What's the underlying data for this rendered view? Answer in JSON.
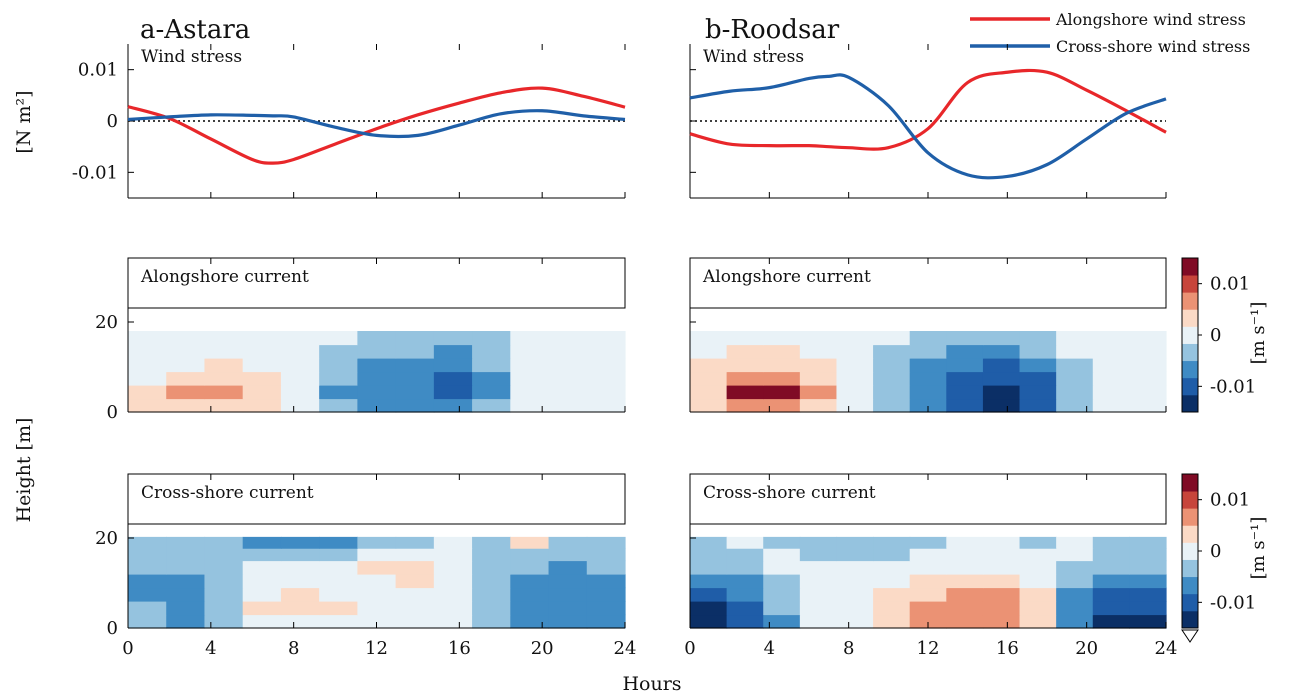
{
  "chart_data": [
    {
      "id": "a_wind",
      "type": "line",
      "title": "a-Astara",
      "inner_label": "Wind stress",
      "ylabel": "[N m²]",
      "xlim": [
        0,
        24
      ],
      "ylim": [
        -0.015,
        0.015
      ],
      "yticks": [
        0.01,
        0,
        -0.01
      ],
      "ytick_labels": [
        "0.01",
        "0",
        "-0.01"
      ],
      "x": [
        0,
        2,
        4,
        6,
        7,
        8,
        10,
        12,
        14,
        16,
        18,
        20,
        22,
        24
      ],
      "zero_line": "dotted",
      "series": [
        {
          "name": "Alongshore wind stress",
          "color": "#e8272a",
          "values": [
            0.0028,
            0.0005,
            -0.0035,
            -0.0075,
            -0.0082,
            -0.0075,
            -0.0045,
            -0.0015,
            0.0012,
            0.0035,
            0.0055,
            0.0064,
            0.0048,
            0.0027
          ]
        },
        {
          "name": "Cross-shore wind stress",
          "color": "#1f5fa8",
          "values": [
            0.0003,
            0.0008,
            0.0012,
            0.0011,
            0.001,
            0.0008,
            -0.0012,
            -0.0028,
            -0.0028,
            -0.0008,
            0.0014,
            0.002,
            0.001,
            0.0003
          ]
        }
      ]
    },
    {
      "id": "b_wind",
      "type": "line",
      "title": "b-Roodsar",
      "inner_label": "Wind stress",
      "xlim": [
        0,
        24
      ],
      "ylim": [
        -0.015,
        0.015
      ],
      "x": [
        0,
        2,
        4,
        6,
        7,
        8,
        10,
        12,
        14,
        16,
        18,
        20,
        22,
        24
      ],
      "zero_line": "dotted",
      "series": [
        {
          "name": "Alongshore wind stress",
          "color": "#e8272a",
          "values": [
            -0.0025,
            -0.0045,
            -0.0048,
            -0.0048,
            -0.005,
            -0.0052,
            -0.0052,
            -0.0015,
            0.0075,
            0.0095,
            0.0095,
            0.006,
            0.002,
            -0.0022
          ]
        },
        {
          "name": "Cross-shore wind stress",
          "color": "#1f5fa8",
          "values": [
            0.0045,
            0.0058,
            0.0065,
            0.0083,
            0.0087,
            0.0085,
            0.003,
            -0.0062,
            -0.0105,
            -0.0108,
            -0.0085,
            -0.0035,
            0.0015,
            0.0043
          ]
        }
      ]
    },
    {
      "id": "a_along",
      "type": "heatmap",
      "inner_label": "Alongshore current",
      "xlim": [
        0,
        24
      ],
      "ylim": [
        0,
        20
      ],
      "yticks": [
        0,
        20
      ],
      "ytick_labels": [
        "0",
        "20"
      ],
      "x": [
        0,
        2,
        4,
        6,
        8,
        10,
        12,
        14,
        16,
        18,
        20,
        22,
        24
      ],
      "z": [
        1.5,
        4.5,
        7.5,
        10.5,
        13.5,
        16.5
      ],
      "values": [
        [
          0.004,
          0.007,
          0.007,
          0.004,
          0.0,
          -0.003,
          -0.004,
          -0.005,
          -0.005,
          -0.003,
          0.0,
          0.002,
          0.001
        ],
        [
          0.004,
          0.008,
          0.008,
          0.005,
          0.0,
          -0.004,
          -0.005,
          -0.007,
          -0.009,
          -0.004,
          0.0,
          0.002,
          0.002
        ],
        [
          0.003,
          0.006,
          0.006,
          0.004,
          0.0,
          -0.003,
          -0.005,
          -0.006,
          -0.008,
          -0.004,
          0.0,
          0.002,
          0.001
        ],
        [
          0.002,
          0.003,
          0.004,
          0.002,
          0.0,
          -0.002,
          -0.004,
          -0.005,
          -0.006,
          -0.003,
          0.0,
          0.001,
          0.001
        ],
        [
          0.001,
          0.001,
          0.002,
          0.001,
          0.0,
          -0.001,
          -0.002,
          -0.003,
          -0.005,
          -0.002,
          0.0,
          0.0,
          0.0
        ],
        [
          0.0,
          0.0,
          0.0,
          0.0,
          0.0,
          0.0,
          -0.001,
          -0.001,
          -0.002,
          -0.001,
          0.0,
          0.0,
          0.0
        ]
      ]
    },
    {
      "id": "b_along",
      "type": "heatmap",
      "inner_label": "Alongshore current",
      "xlim": [
        0,
        24
      ],
      "ylim": [
        0,
        20
      ],
      "x": [
        0,
        2,
        4,
        6,
        8,
        10,
        12,
        14,
        16,
        18,
        20,
        22,
        24
      ],
      "z": [
        1.5,
        4.5,
        7.5,
        10.5,
        13.5,
        16.5
      ],
      "values": [
        [
          0.005,
          0.009,
          0.01,
          0.006,
          0.002,
          -0.002,
          -0.006,
          -0.009,
          -0.012,
          -0.008,
          -0.002,
          0.0,
          0.0
        ],
        [
          0.006,
          0.012,
          0.013,
          0.008,
          0.003,
          -0.003,
          -0.006,
          -0.01,
          -0.013,
          -0.01,
          -0.003,
          0.0,
          0.001
        ],
        [
          0.005,
          0.01,
          0.01,
          0.007,
          0.002,
          -0.003,
          -0.005,
          -0.009,
          -0.011,
          -0.008,
          -0.002,
          0.001,
          0.002
        ],
        [
          0.004,
          0.007,
          0.007,
          0.004,
          0.001,
          -0.002,
          -0.004,
          -0.007,
          -0.008,
          -0.005,
          -0.001,
          0.0,
          0.002
        ],
        [
          0.002,
          0.004,
          0.004,
          0.002,
          0.0,
          -0.001,
          -0.003,
          -0.004,
          -0.005,
          -0.003,
          0.0,
          0.0,
          0.001
        ],
        [
          0.001,
          0.002,
          0.002,
          0.001,
          0.0,
          0.0,
          -0.001,
          -0.002,
          -0.002,
          -0.001,
          0.0,
          0.0,
          0.0
        ]
      ]
    },
    {
      "id": "a_cross",
      "type": "heatmap",
      "inner_label": "Cross-shore current",
      "xlim": [
        0,
        24
      ],
      "ylim": [
        0,
        20
      ],
      "yticks": [
        0,
        20
      ],
      "ytick_labels": [
        "0",
        "20"
      ],
      "x": [
        0,
        2,
        4,
        6,
        8,
        10,
        12,
        14,
        16,
        18,
        20,
        22,
        24
      ],
      "z": [
        1.5,
        4.5,
        7.5,
        10.5,
        13.5,
        16.5,
        19
      ],
      "values": [
        [
          -0.002,
          -0.004,
          -0.001,
          0.002,
          0.002,
          0.002,
          0.002,
          0.001,
          0.0,
          -0.002,
          -0.004,
          -0.005,
          -0.004
        ],
        [
          -0.003,
          -0.006,
          -0.002,
          0.004,
          0.005,
          0.004,
          0.002,
          0.003,
          0.002,
          -0.002,
          -0.006,
          -0.007,
          -0.005
        ],
        [
          -0.005,
          -0.006,
          -0.002,
          0.003,
          0.004,
          0.002,
          0.002,
          0.003,
          0.002,
          -0.002,
          -0.005,
          -0.006,
          -0.005
        ],
        [
          -0.004,
          -0.005,
          -0.002,
          0.001,
          0.002,
          0.002,
          0.003,
          0.004,
          0.003,
          -0.001,
          -0.004,
          -0.005,
          -0.004
        ],
        [
          -0.002,
          -0.003,
          -0.001,
          0.0,
          0.001,
          0.003,
          0.004,
          0.004,
          0.002,
          -0.001,
          -0.003,
          -0.004,
          -0.003
        ],
        [
          -0.001,
          -0.002,
          -0.002,
          -0.001,
          -0.002,
          -0.001,
          0.001,
          0.002,
          0.001,
          -0.001,
          -0.002,
          -0.002,
          -0.002
        ],
        [
          -0.002,
          -0.003,
          -0.002,
          -0.004,
          -0.006,
          -0.004,
          -0.003,
          -0.002,
          0.0,
          -0.003,
          0.004,
          -0.002,
          -0.002
        ]
      ]
    },
    {
      "id": "b_cross",
      "type": "heatmap",
      "inner_label": "Cross-shore current",
      "xlim": [
        0,
        24
      ],
      "ylim": [
        0,
        20
      ],
      "x": [
        0,
        2,
        4,
        6,
        8,
        10,
        12,
        14,
        16,
        18,
        20,
        22,
        24
      ],
      "z": [
        1.5,
        4.5,
        7.5,
        10.5,
        13.5,
        16.5,
        19
      ],
      "values": [
        [
          -0.013,
          -0.011,
          -0.004,
          0.0,
          0.002,
          0.005,
          0.008,
          0.01,
          0.009,
          0.004,
          -0.006,
          -0.012,
          -0.013
        ],
        [
          -0.012,
          -0.009,
          -0.003,
          0.001,
          0.003,
          0.006,
          0.009,
          0.011,
          0.01,
          0.005,
          -0.005,
          -0.01,
          -0.011
        ],
        [
          -0.009,
          -0.007,
          -0.002,
          0.001,
          0.002,
          0.004,
          0.007,
          0.009,
          0.008,
          0.004,
          -0.004,
          -0.008,
          -0.008
        ],
        [
          -0.006,
          -0.004,
          -0.001,
          0.0,
          0.001,
          0.002,
          0.004,
          0.006,
          0.005,
          0.002,
          -0.002,
          -0.005,
          -0.005
        ],
        [
          -0.003,
          -0.002,
          0.0,
          0.0,
          0.0,
          0.001,
          0.002,
          0.003,
          0.003,
          0.001,
          -0.001,
          -0.003,
          -0.003
        ],
        [
          -0.001,
          -0.001,
          0.0,
          -0.001,
          -0.002,
          -0.001,
          0.0,
          0.001,
          0.001,
          0.0,
          0.0,
          -0.001,
          -0.001
        ],
        [
          -0.001,
          0.0,
          -0.001,
          -0.002,
          -0.003,
          -0.002,
          -0.001,
          0.0,
          0.0,
          -0.001,
          0.0,
          -0.001,
          -0.001
        ]
      ]
    }
  ],
  "x_axis": {
    "label": "Hours",
    "ticks": [
      0,
      4,
      8,
      12,
      16,
      20,
      24
    ],
    "tick_labels": [
      "0",
      "4",
      "8",
      "12",
      "16",
      "20",
      "24"
    ]
  },
  "shared_ylabel": "Height [m]",
  "legend": {
    "position": "top-right",
    "entries": [
      {
        "label": "Alongshore wind stress",
        "color": "#e8272a"
      },
      {
        "label": "Cross-shore wind stress",
        "color": "#1f5fa8"
      }
    ]
  },
  "colorbars": [
    {
      "for": "alongshore",
      "label": "[m s⁻¹]",
      "tick_values": [
        0.01,
        0,
        -0.01
      ],
      "tick_labels": [
        "0.01",
        "0",
        "-0.01"
      ],
      "range": [
        -0.015,
        0.015
      ]
    },
    {
      "for": "cross-shore",
      "label": "[m s⁻¹]",
      "tick_values": [
        0.01,
        0,
        -0.01
      ],
      "tick_labels": [
        "0.01",
        "0",
        "-0.01"
      ],
      "range": [
        -0.015,
        0.015
      ]
    }
  ],
  "colorscale": {
    "levels": [
      -0.015,
      -0.0113,
      -0.0075,
      -0.0038,
      0.0,
      0.0038,
      0.0075,
      0.0113,
      0.015
    ],
    "colors": [
      "#0b2f66",
      "#1f5da8",
      "#3f8bc4",
      "#95c3df",
      "#e9f2f7",
      "#fbdac6",
      "#eb9274",
      "#c7453b",
      "#800b25"
    ]
  }
}
